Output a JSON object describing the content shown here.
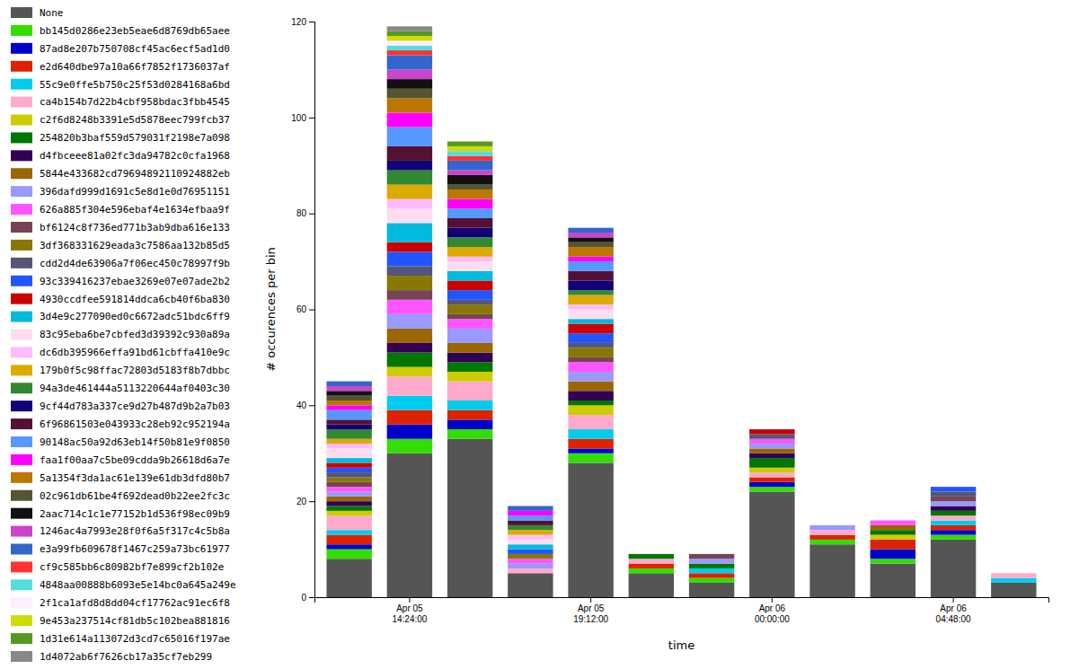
{
  "chart_data": {
    "type": "bar",
    "stacked": true,
    "legend": "left",
    "xlabel": "time",
    "ylabel": "# occurences per bin",
    "ylim": [
      0,
      120
    ],
    "yticks": [
      0,
      20,
      40,
      60,
      80,
      100,
      120
    ],
    "categories": [
      null,
      "Apr 05\n14:24:00",
      null,
      null,
      "Apr 05\n19:12:00",
      null,
      null,
      "Apr 06\n00:00:00",
      null,
      null,
      "Apr 06\n04:48:00",
      null
    ],
    "series": [
      {
        "name": "None",
        "color": "#555555",
        "values": [
          8,
          30,
          33,
          5,
          28,
          5,
          3,
          22,
          11,
          7,
          12,
          3
        ]
      },
      {
        "name": "bb145d0286e23eb5eae6d8769db65aee",
        "color": "#33dd00",
        "values": [
          2,
          3,
          2,
          0,
          2,
          1,
          1,
          1,
          1,
          1,
          1,
          0
        ]
      },
      {
        "name": "87ad8e207b750708cf45ac6ecf5ad1d0",
        "color": "#0000cc",
        "values": [
          1,
          3,
          2,
          0,
          1,
          0,
          0,
          1,
          0,
          2,
          1,
          0
        ]
      },
      {
        "name": "e2d640dbe97a10a66f7852f1736037af",
        "color": "#dd2200",
        "values": [
          2,
          3,
          2,
          0,
          2,
          1,
          1,
          1,
          1,
          2,
          1,
          0
        ]
      },
      {
        "name": "55c9e0ffe5b750c25f53d0284168a6bd",
        "color": "#00ccee",
        "values": [
          1,
          3,
          2,
          0,
          2,
          0,
          1,
          0,
          0,
          0,
          1,
          1
        ]
      },
      {
        "name": "ca4b154b7d22b4cbf958bdac3fbb4545",
        "color": "#ffaacc",
        "values": [
          3,
          4,
          4,
          1,
          3,
          1,
          0,
          1,
          1,
          0,
          1,
          1
        ]
      },
      {
        "name": "c2f6d8248b3391e5d5878eec799fcb37",
        "color": "#cccc00",
        "values": [
          1,
          2,
          2,
          0,
          2,
          0,
          0,
          1,
          0,
          1,
          0,
          0
        ]
      },
      {
        "name": "254820b3baf559d579031f2198e7a098",
        "color": "#007700",
        "values": [
          1,
          3,
          2,
          0,
          1,
          1,
          1,
          2,
          0,
          1,
          1,
          0
        ]
      },
      {
        "name": "d4fbceee81a02fc3da94782c0cfa1968",
        "color": "#330055",
        "values": [
          1,
          2,
          2,
          0,
          2,
          0,
          0,
          1,
          0,
          0,
          1,
          0
        ]
      },
      {
        "name": "5844e433682cd79694892110924882eb",
        "color": "#996600",
        "values": [
          1,
          3,
          2,
          0,
          2,
          0,
          0,
          1,
          0,
          1,
          0,
          0
        ]
      },
      {
        "name": "396dafd999d1691c5e8d1e0d76951151",
        "color": "#9999ff",
        "values": [
          1,
          3,
          3,
          1,
          2,
          0,
          1,
          1,
          1,
          0,
          1,
          0
        ]
      },
      {
        "name": "626a885f304e596ebaf4e1634efbaa9f",
        "color": "#ff55ff",
        "values": [
          1,
          3,
          2,
          1,
          2,
          0,
          0,
          1,
          0,
          1,
          0,
          0
        ]
      },
      {
        "name": "bf6124c8f736ed771b3ab9dba616e133",
        "color": "#774455",
        "values": [
          1,
          2,
          1,
          0,
          1,
          0,
          1,
          0,
          0,
          0,
          1,
          0
        ]
      },
      {
        "name": "3df368331629eada3c7586aa132b85d5",
        "color": "#887700",
        "values": [
          1,
          3,
          2,
          1,
          2,
          0,
          0,
          0,
          0,
          0,
          0,
          0
        ]
      },
      {
        "name": "cdd2d4de63906a7f06ec450c78997f9b",
        "color": "#555577",
        "values": [
          1,
          2,
          1,
          0,
          1,
          0,
          0,
          1,
          0,
          0,
          1,
          0
        ]
      },
      {
        "name": "93c339416237ebae3269e07e07ade2b2",
        "color": "#2255ff",
        "values": [
          1,
          3,
          2,
          1,
          2,
          0,
          0,
          0,
          0,
          0,
          1,
          0
        ]
      },
      {
        "name": "4930ccdfee591814ddca6cb40f6ba830",
        "color": "#cc0000",
        "values": [
          1,
          2,
          2,
          0,
          2,
          0,
          0,
          1,
          0,
          0,
          0,
          0
        ]
      },
      {
        "name": "3d4e9c277090ed0c6672adc51bdc6ff9",
        "color": "#00bbdd",
        "values": [
          1,
          4,
          2,
          1,
          1,
          0,
          0,
          0,
          0,
          0,
          0,
          0
        ]
      },
      {
        "name": "83c95eba6be7cbfed3d39392c930a89a",
        "color": "#ffddee",
        "values": [
          2,
          3,
          2,
          1,
          2,
          0,
          0,
          0,
          0,
          0,
          0,
          0
        ]
      },
      {
        "name": "dc6db395966effa91bd61cbffa410e9c",
        "color": "#ffbbff",
        "values": [
          1,
          2,
          1,
          1,
          1,
          0,
          0,
          0,
          0,
          0,
          0,
          0
        ]
      },
      {
        "name": "179b0f5c98ffac72803d5183f8b7dbbc",
        "color": "#ddaa00",
        "values": [
          1,
          3,
          2,
          1,
          2,
          0,
          0,
          0,
          0,
          0,
          0,
          0
        ]
      },
      {
        "name": "94a3de461444a5113220644af0403c30",
        "color": "#338833",
        "values": [
          2,
          3,
          2,
          1,
          1,
          0,
          0,
          0,
          0,
          0,
          0,
          0
        ]
      },
      {
        "name": "9cf44d783a337ce9d27b487d9b2a7b03",
        "color": "#110077",
        "values": [
          1,
          2,
          2,
          0,
          2,
          0,
          0,
          0,
          0,
          0,
          0,
          0
        ]
      },
      {
        "name": "6f96861503e043933c28eb92c952194a",
        "color": "#551133",
        "values": [
          1,
          3,
          2,
          1,
          2,
          0,
          0,
          0,
          0,
          0,
          0,
          0
        ]
      },
      {
        "name": "90148ac50a92d63eb14f50b81e9f0850",
        "color": "#5599ff",
        "values": [
          2,
          4,
          2,
          1,
          2,
          0,
          0,
          0,
          0,
          0,
          0,
          0
        ]
      },
      {
        "name": "faa1f00aa7c5be09cdda9b26618d6a7e",
        "color": "#ff00ff",
        "values": [
          1,
          3,
          2,
          1,
          1,
          0,
          0,
          0,
          0,
          0,
          0,
          0
        ]
      },
      {
        "name": "5a1354f3da1ac61e139e61db3dfd80b7",
        "color": "#bb7700",
        "values": [
          1,
          3,
          2,
          0,
          2,
          0,
          0,
          0,
          0,
          0,
          0,
          0
        ]
      },
      {
        "name": "02c961db61be4f692dead0b22ee2fc3c",
        "color": "#555533",
        "values": [
          1,
          2,
          1,
          0,
          1,
          0,
          0,
          0,
          0,
          0,
          0,
          0
        ]
      },
      {
        "name": "2aac714c1c1e77152b1d536f98ec09b9",
        "color": "#111111",
        "values": [
          1,
          2,
          2,
          0,
          1,
          0,
          0,
          0,
          0,
          0,
          0,
          0
        ]
      },
      {
        "name": "1246ac4a7993e28f0f6a5f317c4c5b8a",
        "color": "#cc44cc",
        "values": [
          1,
          2,
          1,
          0,
          1,
          0,
          0,
          0,
          0,
          0,
          0,
          0
        ]
      },
      {
        "name": "e3a99fb609678f1467c259a73bc61977",
        "color": "#3366cc",
        "values": [
          1,
          3,
          2,
          1,
          1,
          0,
          0,
          0,
          0,
          0,
          0,
          0
        ]
      },
      {
        "name": "cf9c585bb6c80982bf7e899cf2b102e",
        "color": "#ff3333",
        "values": [
          0,
          1,
          1,
          0,
          0,
          0,
          0,
          0,
          0,
          0,
          0,
          0
        ]
      },
      {
        "name": "4848aa00888b6093e5e14bc0a645a249e",
        "color": "#55dddd",
        "values": [
          0,
          1,
          1,
          0,
          0,
          0,
          0,
          0,
          0,
          0,
          0,
          0
        ]
      },
      {
        "name": "2f1ca1afd8d8dd04cf17762ac91ec6f8",
        "color": "#ffeeff",
        "values": [
          0,
          1,
          0,
          0,
          0,
          0,
          0,
          0,
          0,
          0,
          0,
          0
        ]
      },
      {
        "name": "9e453a237514cf81db5c102bea881816",
        "color": "#ccdd00",
        "values": [
          0,
          1,
          1,
          0,
          0,
          0,
          0,
          0,
          0,
          0,
          0,
          0
        ]
      },
      {
        "name": "1d31e614a113072d3cd7c65016f197ae",
        "color": "#559922",
        "values": [
          0,
          1,
          1,
          0,
          0,
          0,
          0,
          0,
          0,
          0,
          0,
          0
        ]
      },
      {
        "name": "1d4072ab6f7626cb17a35cf7eb299",
        "color": "#888888",
        "values": [
          0,
          1,
          0,
          0,
          0,
          0,
          0,
          0,
          0,
          0,
          0,
          0
        ]
      }
    ]
  }
}
